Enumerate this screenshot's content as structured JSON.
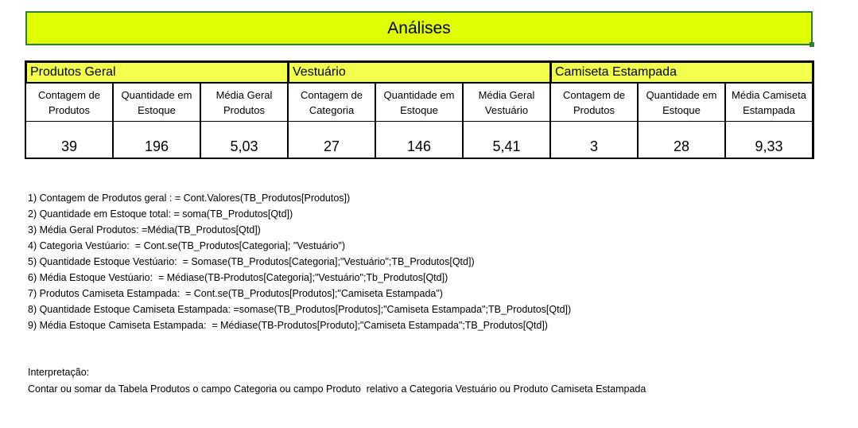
{
  "title": "Análises",
  "table": {
    "groups": [
      "Produtos Geral",
      "Vestuário",
      "Camiseta Estampada"
    ],
    "headers": [
      "Contagem de Produtos",
      "Quantidade em Estoque",
      "Média Geral Produtos",
      "Contagem de Categoria",
      "Quantidade em Estoque",
      "Média Geral Vestuário",
      "Contagem de Produtos",
      "Quantidade em Estoque",
      "Média  Camiseta Estampada"
    ],
    "values": [
      "39",
      "196",
      "5,03",
      "27",
      "146",
      "5,41",
      "3",
      "28",
      "9,33"
    ]
  },
  "formulas": [
    "1) Contagem de Produtos geral : = Cont.Valores(TB_Produtos[Produtos])",
    "2) Quantidade em Estoque total: = soma(TB_Produtos[Qtd])",
    "3) Média Geral Produtos: =Média(TB_Produtos[Qtd])",
    "4) Categoria Vestúario:  = Cont.se(TB_Produtos[Categoria]; \"Vestuário\")",
    "5) Quantidade Estoque Vestúario:  = Somase(TB_Produtos[Categoria];\"Vestuário\";TB_Produtos[Qtd])",
    "6) Média Estoque Vestúario:  = Médiase(TB-Produtos[Categoria];\"Vestuário\";Tb_Produtos[Qtd])",
    "7) Produtos Camiseta Estampada:  = Cont.se(TB_Produtos[Produtos];\"Camiseta Estampada\")",
    "8) Quantidade Estoque Camiseta Estampada: =somase(TB_Produtos[Produtos];\"Camiseta Estampada\";TB_Produtos[Qtd])",
    "9) Média Estoque Camiseta Estampada:  = Médiase(TB-Produtos[Produto];\"Camiseta Estampada\";TB_Produtos[Qtd])"
  ],
  "interpretation": {
    "label": "Interpretação:",
    "text": "Contar ou somar da Tabela Produtos o campo Categoria ou campo Produto  relativo a Categoria Vestuário ou Produto Camiseta Estampada"
  }
}
